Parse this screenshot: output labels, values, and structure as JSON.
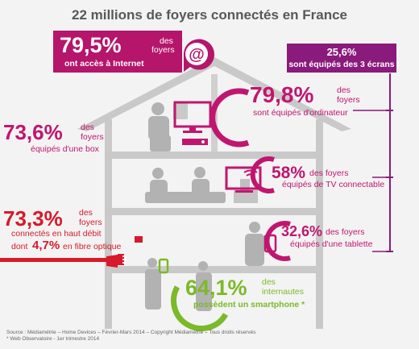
{
  "title": "22 millions de foyers connectés en France",
  "stats": {
    "internet": {
      "pct": "79,5%",
      "line1": "des",
      "line2": "foyers",
      "line3": "ont accès à Internet"
    },
    "three_screens": {
      "pct": "25,6%",
      "text": "sont équipés des 3 écrans"
    },
    "computer": {
      "pct": "79,8%",
      "line1": "des",
      "line2": "foyers",
      "line3": "sont équipés d'ordinateur"
    },
    "box": {
      "pct": "73,6%",
      "line1": "des",
      "line2": "foyers",
      "line3": "équipés d'une box"
    },
    "tv": {
      "pct": "58%",
      "line1": "des foyers",
      "line2": "équipés de TV connectable"
    },
    "broadband": {
      "pct": "73,3%",
      "line1": "des",
      "line2": "foyers",
      "line3": "connectés en haut débit",
      "fiber_prefix": "dont",
      "fiber_pct": "4,7%",
      "fiber_suffix": "en fibre optique"
    },
    "tablet": {
      "pct": "32,6%",
      "line1": "des foyers",
      "line2": "équipés d'une tablette"
    },
    "smartphone": {
      "pct": "64,1%",
      "line1": "des",
      "line2": "internautes",
      "line3": "possèdent un smartphone *"
    }
  },
  "source": {
    "line1": "Source : Médiamétrie – Home Devices – Février-Mars 2014 – Copyright Médiamétrie – Tous droits réservés",
    "line2": "* Web Observatoire - 1er trimestre 2014"
  },
  "chart_data": {
    "type": "table",
    "title": "22 millions de foyers connectés en France",
    "categories": [
      "ont accès à Internet",
      "sont équipés des 3 écrans",
      "sont équipés d'ordinateur",
      "équipés d'une box",
      "équipés de TV connectable",
      "connectés en haut débit",
      "en fibre optique",
      "équipés d'une tablette",
      "possèdent un smartphone *"
    ],
    "values": [
      79.5,
      25.6,
      79.8,
      73.6,
      58,
      73.3,
      4.7,
      32.6,
      64.1
    ]
  },
  "colors": {
    "magenta": "#c0166f",
    "purple": "#8a1a7b",
    "red": "#d7192b",
    "green": "#7cb928",
    "house": "#c8c8c8"
  }
}
